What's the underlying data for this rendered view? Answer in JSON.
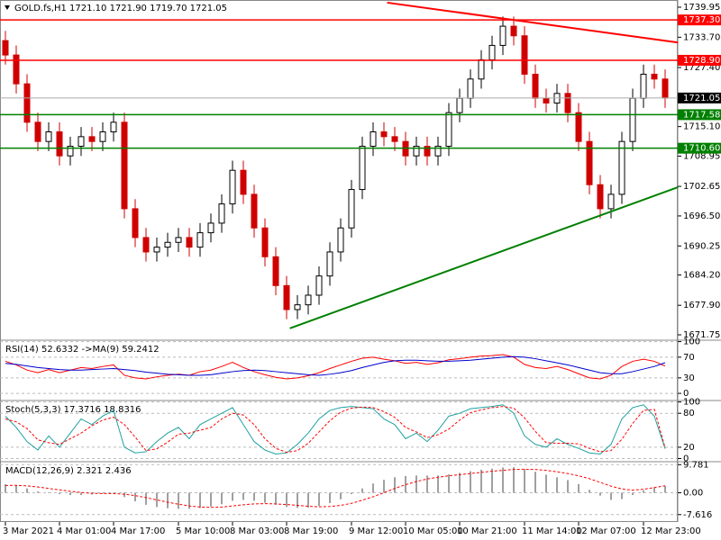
{
  "chart_data": [
    {
      "type": "candlestick",
      "title": "GOLD.fs,H1  1721.10 1721.90 1719.70 1721.05",
      "categories": [
        "3 Mar 2021",
        null,
        null,
        null,
        null,
        "4 Mar 01:00",
        null,
        null,
        null,
        null,
        "4 Mar 17:00",
        null,
        null,
        null,
        null,
        null,
        "5 Mar 10:00",
        null,
        null,
        null,
        null,
        "8 Mar 03:00",
        null,
        null,
        null,
        null,
        "8 Mar 19:00",
        null,
        null,
        null,
        null,
        null,
        "9 Mar 12:00",
        null,
        null,
        null,
        null,
        "10 Mar 05:00",
        null,
        null,
        null,
        null,
        "10 Mar 21:00",
        null,
        null,
        null,
        null,
        null,
        "11 Mar 14:00",
        null,
        null,
        null,
        null,
        "12 Mar 07:00",
        null,
        null,
        null,
        null,
        null,
        "12 Mar 23:00",
        null,
        null
      ],
      "open": [
        1733,
        1730,
        1724,
        1716,
        1712,
        1714,
        1709,
        1711,
        1713,
        1712,
        1714,
        1716,
        1698,
        1692,
        1689,
        1690,
        1691,
        1692,
        1690,
        1693,
        1695,
        1699,
        1706,
        1701,
        1694,
        1688,
        1682,
        1677,
        1678,
        1680,
        1684,
        1689,
        1694,
        1702,
        1711,
        1714,
        1713,
        1712,
        1709,
        1711,
        1709,
        1711,
        1718,
        1721,
        1725,
        1729,
        1732,
        1736,
        1734,
        1726,
        1721,
        1720,
        1722,
        1718,
        1712,
        1703,
        1698,
        1701,
        1712,
        1721,
        1726,
        1725
      ],
      "high": [
        1735,
        1732,
        1726,
        1718,
        1716,
        1716,
        1713,
        1715,
        1715,
        1716,
        1718,
        1718,
        1700,
        1694,
        1692,
        1693,
        1694,
        1694,
        1695,
        1697,
        1701,
        1708,
        1708,
        1703,
        1696,
        1690,
        1684,
        1680,
        1682,
        1686,
        1691,
        1696,
        1704,
        1713,
        1716,
        1716,
        1715,
        1714,
        1713,
        1713,
        1713,
        1720,
        1723,
        1727,
        1731,
        1734,
        1738,
        1738,
        1736,
        1728,
        1723,
        1724,
        1724,
        1720,
        1714,
        1705,
        1703,
        1714,
        1723,
        1728,
        1728,
        1727
      ],
      "low": [
        1728,
        1722,
        1714,
        1710,
        1710,
        1707,
        1707,
        1709,
        1710,
        1710,
        1712,
        1696,
        1690,
        1687,
        1687,
        1688,
        1689,
        1688,
        1688,
        1691,
        1693,
        1697,
        1699,
        1692,
        1686,
        1680,
        1675,
        1675,
        1676,
        1678,
        1682,
        1687,
        1692,
        1700,
        1709,
        1711,
        1710,
        1707,
        1707,
        1707,
        1707,
        1709,
        1716,
        1719,
        1723,
        1727,
        1730,
        1732,
        1724,
        1719,
        1718,
        1718,
        1716,
        1710,
        1701,
        1696,
        1696,
        1699,
        1710,
        1719,
        1723,
        1719
      ],
      "close": [
        1730,
        1724,
        1716,
        1712,
        1714,
        1709,
        1711,
        1713,
        1712,
        1714,
        1716,
        1698,
        1692,
        1689,
        1690,
        1691,
        1692,
        1690,
        1693,
        1695,
        1699,
        1706,
        1701,
        1694,
        1688,
        1682,
        1677,
        1678,
        1680,
        1684,
        1689,
        1694,
        1702,
        1711,
        1714,
        1713,
        1712,
        1709,
        1711,
        1709,
        1711,
        1718,
        1721,
        1725,
        1729,
        1732,
        1736,
        1734,
        1726,
        1721,
        1720,
        1722,
        1718,
        1712,
        1703,
        1698,
        1701,
        1712,
        1721,
        1726,
        1725,
        1721.05
      ],
      "up_color": "#000000",
      "down_color": "#d00000",
      "ylim": [
        1670.63,
        1741.45
      ],
      "yticks": [
        1739.95,
        {
          "value": 1733.7,
          "label": "1733.70"
        },
        {
          "value": 1727.4,
          "label": "1727.40"
        },
        {
          "value": 1715.1,
          "label": "1715.10"
        },
        1708.95,
        1702.65,
        {
          "value": 1696.5,
          "label": "1696.50"
        },
        1690.25,
        {
          "value": 1684.2,
          "label": "1684.20"
        },
        {
          "value": 1677.9,
          "label": "1677.90"
        },
        1671.75
      ],
      "levels": [
        {
          "value": 1737.3,
          "label": "1737.30",
          "color": "#ff0000"
        },
        {
          "value": 1728.9,
          "label": "1728.90",
          "color": "#ff0000"
        },
        {
          "value": 1717.58,
          "label": "1717.58",
          "color": "#008000"
        },
        {
          "value": 1710.6,
          "label": "1710.60",
          "color": "#008000"
        }
      ],
      "current": 1721.05,
      "trendlines": [
        {
          "x": [
            35.3,
            62.2
          ],
          "y": [
            1740.9,
            1732.6
          ],
          "color": "#ff0000"
        },
        {
          "x": [
            26.3,
            62.2
          ],
          "y": [
            1673.1,
            1702.5
          ],
          "color": "#008000"
        }
      ]
    },
    {
      "type": "line",
      "title": "RSI(14) 52.6332  ->MA(9) 59.2412",
      "series": [
        {
          "color": "#ff0000",
          "values": [
            62,
            55,
            45,
            40,
            46,
            40,
            45,
            50,
            48,
            52,
            55,
            35,
            30,
            28,
            32,
            35,
            37,
            35,
            42,
            45,
            52,
            60,
            50,
            42,
            36,
            31,
            28,
            30,
            34,
            40,
            48,
            55,
            62,
            68,
            70,
            66,
            63,
            58,
            60,
            56,
            59,
            65,
            67,
            70,
            72,
            73,
            75,
            70,
            56,
            50,
            48,
            52,
            46,
            38,
            30,
            28,
            35,
            52,
            62,
            66,
            62,
            52.6332
          ]
        },
        {
          "color": "#0000cc",
          "values": [
            58,
            56,
            53,
            50,
            48,
            46,
            45,
            45,
            46,
            47,
            48,
            46,
            44,
            41,
            39,
            37,
            36,
            35,
            35,
            36,
            39,
            42,
            44,
            45,
            44,
            42,
            40,
            38,
            36,
            35,
            37,
            40,
            44,
            50,
            55,
            60,
            63,
            64,
            64,
            63,
            62,
            62,
            63,
            64,
            66,
            68,
            70,
            71,
            70,
            67,
            63,
            59,
            55,
            50,
            45,
            40,
            38,
            38,
            42,
            47,
            52,
            59.2412
          ]
        }
      ],
      "ylim": [
        -12,
        101
      ],
      "yticks": [
        100,
        70,
        30,
        0
      ]
    },
    {
      "type": "line",
      "title": "Stoch(5,3,3) 17.3716 18.8316",
      "series": [
        {
          "color": "#20a0a0",
          "values": [
            75,
            55,
            30,
            15,
            40,
            20,
            45,
            70,
            60,
            75,
            85,
            20,
            10,
            12,
            30,
            45,
            55,
            35,
            60,
            70,
            80,
            90,
            60,
            30,
            15,
            8,
            10,
            25,
            45,
            70,
            85,
            90,
            92,
            90,
            88,
            70,
            60,
            35,
            45,
            30,
            50,
            75,
            80,
            88,
            90,
            92,
            95,
            80,
            40,
            25,
            20,
            35,
            25,
            18,
            10,
            8,
            25,
            70,
            90,
            95,
            75,
            17.3716
          ]
        },
        {
          "color": "#ff0000",
          "dashed": true,
          "values": [
            70,
            65,
            53,
            33,
            28,
            25,
            35,
            45,
            58,
            68,
            73,
            60,
            38,
            14,
            17,
            29,
            43,
            45,
            50,
            55,
            70,
            80,
            77,
            60,
            35,
            18,
            11,
            14,
            27,
            47,
            67,
            82,
            89,
            91,
            90,
            83,
            73,
            55,
            47,
            37,
            42,
            52,
            68,
            81,
            86,
            90,
            92,
            89,
            72,
            48,
            28,
            27,
            27,
            26,
            18,
            12,
            14,
            34,
            62,
            85,
            87,
            18.8316
          ]
        }
      ],
      "ylim": [
        -4,
        101
      ],
      "yticks": [
        100,
        80,
        20,
        0
      ]
    },
    {
      "type": "macd",
      "title": "MACD(12,26,9) 2.321 2.436",
      "histogram": {
        "color": "#a0a0a0",
        "values": [
          3,
          2.5,
          1.5,
          0.5,
          0,
          -0.5,
          -0.8,
          -0.8,
          -0.6,
          -0.3,
          0,
          -1.5,
          -3,
          -4.2,
          -5,
          -5.4,
          -5.6,
          -5.6,
          -5.3,
          -4.8,
          -4,
          -2.8,
          -2.5,
          -2.8,
          -3.5,
          -4.2,
          -5,
          -5.3,
          -5.2,
          -4.6,
          -3.6,
          -2.3,
          -0.5,
          1.5,
          3.2,
          4.5,
          5.4,
          5.8,
          6,
          6,
          6,
          6.4,
          6.9,
          7.5,
          8,
          8.4,
          8.8,
          8.9,
          8.3,
          7.3,
          6.3,
          5.4,
          4.4,
          3,
          1,
          -1,
          -2.5,
          -2.2,
          -0.8,
          0.8,
          1.8,
          2.321
        ]
      },
      "signal": {
        "color": "#ff0000",
        "values": [
          2.5,
          2.6,
          2.4,
          2,
          1.5,
          1,
          0.5,
          0.1,
          -0.2,
          -0.3,
          -0.3,
          -0.5,
          -1,
          -1.7,
          -2.5,
          -3.3,
          -4,
          -4.6,
          -5,
          -5.1,
          -5,
          -4.6,
          -4.2,
          -3.9,
          -3.8,
          -3.9,
          -4.1,
          -4.4,
          -4.7,
          -4.9,
          -4.8,
          -4.4,
          -3.7,
          -2.6,
          -1.4,
          0,
          1.5,
          2.8,
          3.9,
          4.8,
          5.4,
          5.9,
          6.3,
          6.7,
          7.1,
          7.5,
          7.8,
          8.1,
          8.2,
          8.1,
          7.8,
          7.3,
          6.7,
          5.9,
          4.9,
          3.6,
          2.3,
          1.3,
          0.9,
          1.2,
          1.8,
          2.436
        ]
      },
      "ylim": [
        -10.2,
        10.5
      ],
      "yticks": [
        9.781,
        {
          "value": 0,
          "label": "0.00"
        },
        -7.616
      ]
    }
  ]
}
